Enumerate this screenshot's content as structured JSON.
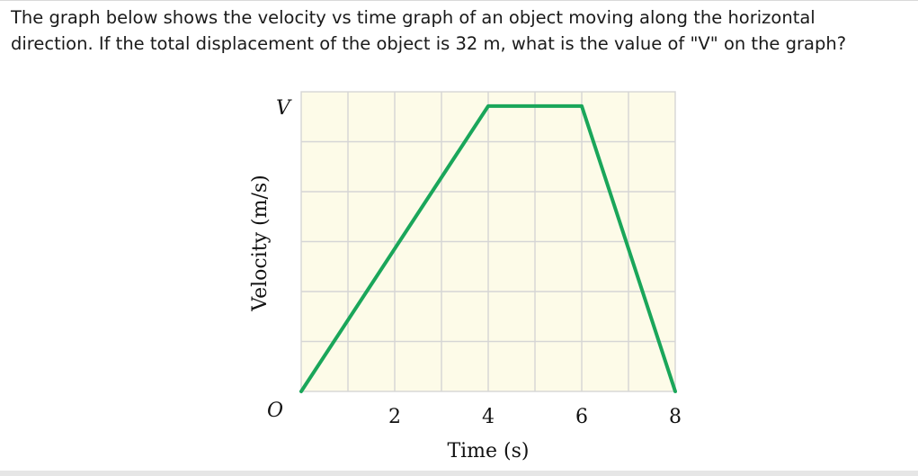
{
  "question": {
    "line1": "The graph below shows the velocity vs time graph of an object moving along the horizontal",
    "line2": "direction. If the total displacement of the object is 32 m, what is the value of \"V\" on the graph?"
  },
  "chart_data": {
    "type": "line",
    "title": "",
    "xlabel": "Time (s)",
    "ylabel": "Velocity (m/s)",
    "x_ticks": [
      "2",
      "4",
      "6",
      "8"
    ],
    "y_tick_label_top": "V",
    "origin_label": "O",
    "xlim": [
      0,
      8
    ],
    "ylim_fraction_of_V": [
      0,
      1.05
    ],
    "grid": true,
    "series": [
      {
        "x": [
          0,
          4,
          6,
          8
        ],
        "y_fraction_of_V": [
          0,
          1,
          1,
          0
        ],
        "color": "#1aa65a"
      }
    ],
    "background_color": "#fdfbe8",
    "grid_color": "#d5d5d5"
  }
}
